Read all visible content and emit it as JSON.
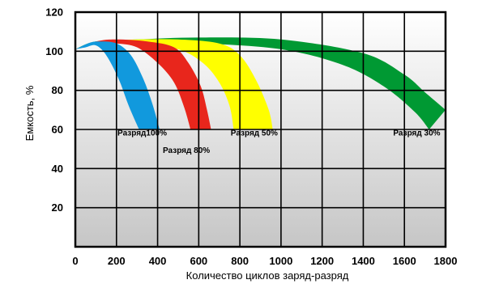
{
  "chart_data": {
    "type": "area",
    "xlabel": "Количество циклов заряд-разряд",
    "ylabel": "Емкость, %",
    "xlim": [
      0,
      1800
    ],
    "ylim": [
      0,
      120
    ],
    "x_ticks": [
      "0",
      "200",
      "400",
      "600",
      "800",
      "1000",
      "1200",
      "1400",
      "1600",
      "1800"
    ],
    "y_ticks": [
      "20",
      "40",
      "60",
      "80",
      "100",
      "120"
    ],
    "grid": true,
    "series": [
      {
        "name": "Разряд 30%",
        "label": "Разряд 30%",
        "color": "#009933",
        "upper": [
          [
            0,
            101
          ],
          [
            100,
            105
          ],
          [
            300,
            106
          ],
          [
            600,
            107
          ],
          [
            1000,
            106
          ],
          [
            1400,
            99
          ],
          [
            1600,
            88
          ],
          [
            1700,
            79
          ],
          [
            1800,
            70
          ]
        ],
        "lower": [
          [
            0,
            101
          ],
          [
            100,
            104
          ],
          [
            300,
            104
          ],
          [
            600,
            104
          ],
          [
            1000,
            101
          ],
          [
            1300,
            93
          ],
          [
            1500,
            82
          ],
          [
            1650,
            69
          ],
          [
            1720,
            60
          ]
        ]
      },
      {
        "name": "Разряд 50%",
        "label": "Разряд 50%",
        "color": "#ffff00",
        "upper": [
          [
            0,
            101
          ],
          [
            100,
            105
          ],
          [
            300,
            106
          ],
          [
            500,
            106
          ],
          [
            700,
            104
          ],
          [
            800,
            98
          ],
          [
            880,
            85
          ],
          [
            940,
            70
          ],
          [
            960,
            60
          ]
        ],
        "lower": [
          [
            0,
            101
          ],
          [
            100,
            104
          ],
          [
            300,
            104
          ],
          [
            500,
            101
          ],
          [
            620,
            94
          ],
          [
            700,
            84
          ],
          [
            750,
            72
          ],
          [
            770,
            60
          ]
        ]
      },
      {
        "name": "Разряд 80%",
        "label": "Разряд 80%",
        "color": "#e8261c",
        "upper": [
          [
            0,
            101
          ],
          [
            100,
            105
          ],
          [
            200,
            106
          ],
          [
            350,
            105
          ],
          [
            480,
            102
          ],
          [
            550,
            94
          ],
          [
            610,
            82
          ],
          [
            640,
            70
          ],
          [
            660,
            60
          ]
        ],
        "lower": [
          [
            0,
            101
          ],
          [
            100,
            104
          ],
          [
            200,
            104
          ],
          [
            300,
            102
          ],
          [
            400,
            94
          ],
          [
            480,
            84
          ],
          [
            530,
            71
          ],
          [
            560,
            60
          ]
        ]
      },
      {
        "name": "Разряд100%",
        "label": "Разряд100%",
        "color": "#1199dd",
        "upper": [
          [
            0,
            101
          ],
          [
            60,
            104
          ],
          [
            110,
            105
          ],
          [
            200,
            104
          ],
          [
            270,
            98
          ],
          [
            330,
            86
          ],
          [
            375,
            73
          ],
          [
            410,
            60
          ]
        ],
        "lower": [
          [
            0,
            101
          ],
          [
            50,
            102
          ],
          [
            100,
            103
          ],
          [
            150,
            98
          ],
          [
            210,
            86
          ],
          [
            260,
            72
          ],
          [
            310,
            60
          ]
        ]
      }
    ],
    "band_labels": [
      {
        "text": "Разряд100%",
        "x": 325,
        "y": 57
      },
      {
        "text": "Разряд 80%",
        "x": 540,
        "y": 48
      },
      {
        "text": "Разряд 50%",
        "x": 870,
        "y": 57
      },
      {
        "text": "Разряд 30%",
        "x": 1660,
        "y": 57
      }
    ]
  }
}
